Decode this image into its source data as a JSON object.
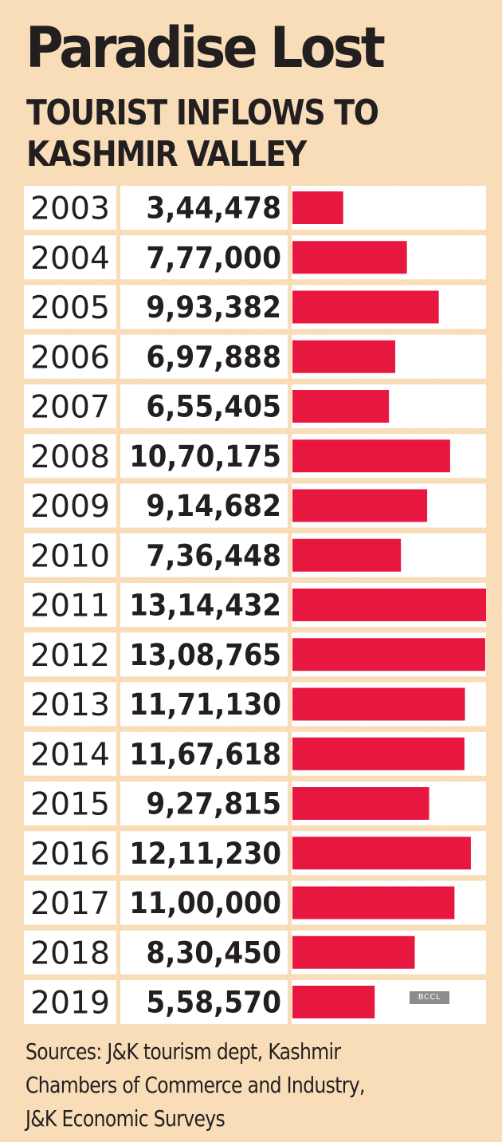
{
  "chart_data": {
    "type": "bar",
    "orientation": "horizontal",
    "title": "Paradise Lost",
    "subtitle_lines": [
      "TOURIST INFLOWS TO",
      "KASHMIR VALLEY"
    ],
    "categories": [
      "2003",
      "2004",
      "2005",
      "2006",
      "2007",
      "2008",
      "2009",
      "2010",
      "2011",
      "2012",
      "2013",
      "2014",
      "2015",
      "2016",
      "2017",
      "2018",
      "2019"
    ],
    "values": [
      344478,
      777000,
      993382,
      697888,
      655405,
      1070175,
      914682,
      736448,
      1314432,
      1308765,
      1171130,
      1167618,
      927815,
      1211230,
      1100000,
      830450,
      558570
    ],
    "value_labels": [
      "3,44,478",
      "7,77,000",
      "9,93,382",
      "6,97,888",
      "6,55,405",
      "10,70,175",
      "9,14,682",
      "7,36,448",
      "13,14,432",
      "13,08,765",
      "11,71,130",
      "11,67,618",
      "9,27,815",
      "12,11,230",
      "11,00,000",
      "8,30,450",
      "5,58,570"
    ],
    "xlim": [
      0,
      1314432
    ],
    "bar_color": "#e8173f",
    "row_color": "#ffffff",
    "background_color": "#f8dcb6",
    "credit": "BCCL",
    "source_lines": [
      "Sources: J&K tourism dept, Kashmir",
      "Chambers of Commerce and Industry,",
      "J&K Economic Surveys"
    ]
  }
}
